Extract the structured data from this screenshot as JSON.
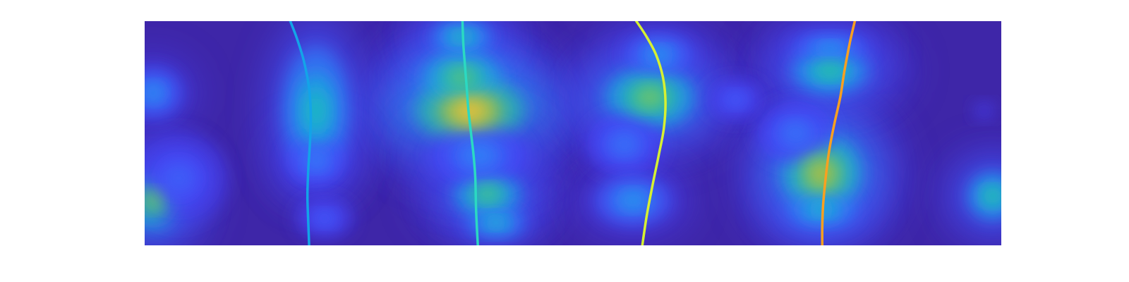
{
  "chart_data": {
    "type": "heatmap",
    "title": "",
    "xlabel": "",
    "ylabel": "",
    "axes_visible": false,
    "ticks_visible": false,
    "colorbar": false,
    "grid": false,
    "legend": "none",
    "colormap": [
      "#3e26a8",
      "#4743f8",
      "#2e87f7",
      "#16b5d3",
      "#2ec09b",
      "#83c458",
      "#d2ba2d",
      "#fec237",
      "#f9fb15"
    ],
    "xlim": [
      0,
      1
    ],
    "ylim": [
      0,
      1
    ],
    "density_blobs": [
      {
        "x": 0.01,
        "y": 0.2,
        "sx": 0.028,
        "sy": 0.11,
        "w": 0.62
      },
      {
        "x": 0.01,
        "y": 0.68,
        "sx": 0.03,
        "sy": 0.1,
        "w": 0.28
      },
      {
        "x": 0.04,
        "y": 0.3,
        "sx": 0.05,
        "sy": 0.18,
        "w": 0.18
      },
      {
        "x": 0.2,
        "y": 0.6,
        "sx": 0.035,
        "sy": 0.25,
        "w": 0.42
      },
      {
        "x": 0.2,
        "y": 0.38,
        "sx": 0.03,
        "sy": 0.1,
        "w": 0.24
      },
      {
        "x": 0.21,
        "y": 0.12,
        "sx": 0.03,
        "sy": 0.08,
        "w": 0.18
      },
      {
        "x": 0.38,
        "y": 0.6,
        "sx": 0.055,
        "sy": 0.13,
        "w": 0.85
      },
      {
        "x": 0.37,
        "y": 0.75,
        "sx": 0.04,
        "sy": 0.1,
        "w": 0.58
      },
      {
        "x": 0.37,
        "y": 0.93,
        "sx": 0.03,
        "sy": 0.06,
        "w": 0.45
      },
      {
        "x": 0.4,
        "y": 0.23,
        "sx": 0.035,
        "sy": 0.09,
        "w": 0.55
      },
      {
        "x": 0.41,
        "y": 0.1,
        "sx": 0.03,
        "sy": 0.06,
        "w": 0.4
      },
      {
        "x": 0.39,
        "y": 0.4,
        "sx": 0.05,
        "sy": 0.12,
        "w": 0.25
      },
      {
        "x": 0.59,
        "y": 0.66,
        "sx": 0.045,
        "sy": 0.12,
        "w": 0.62
      },
      {
        "x": 0.6,
        "y": 0.85,
        "sx": 0.035,
        "sy": 0.08,
        "w": 0.3
      },
      {
        "x": 0.56,
        "y": 0.45,
        "sx": 0.04,
        "sy": 0.12,
        "w": 0.22
      },
      {
        "x": 0.57,
        "y": 0.2,
        "sx": 0.04,
        "sy": 0.1,
        "w": 0.3
      },
      {
        "x": 0.69,
        "y": 0.65,
        "sx": 0.03,
        "sy": 0.08,
        "w": 0.18
      },
      {
        "x": 0.79,
        "y": 0.32,
        "sx": 0.04,
        "sy": 0.15,
        "w": 0.72
      },
      {
        "x": 0.79,
        "y": 0.16,
        "sx": 0.035,
        "sy": 0.07,
        "w": 0.4
      },
      {
        "x": 0.8,
        "y": 0.78,
        "sx": 0.04,
        "sy": 0.09,
        "w": 0.5
      },
      {
        "x": 0.8,
        "y": 0.88,
        "sx": 0.04,
        "sy": 0.06,
        "w": 0.3
      },
      {
        "x": 0.76,
        "y": 0.5,
        "sx": 0.04,
        "sy": 0.12,
        "w": 0.22
      },
      {
        "x": 0.99,
        "y": 0.22,
        "sx": 0.025,
        "sy": 0.09,
        "w": 0.5
      },
      {
        "x": 0.98,
        "y": 0.6,
        "sx": 0.035,
        "sy": 0.1,
        "w": 0.1
      }
    ],
    "series": [
      {
        "color": "#13a4e8",
        "x": [
          0.17,
          0.178,
          0.186,
          0.192,
          0.194,
          0.193,
          0.191,
          0.19,
          0.191,
          0.192
        ],
        "y": [
          1.0,
          0.92,
          0.82,
          0.7,
          0.58,
          0.46,
          0.34,
          0.22,
          0.1,
          0.0
        ]
      },
      {
        "color": "#2bd9c2",
        "x": [
          0.371,
          0.372,
          0.374,
          0.376,
          0.378,
          0.381,
          0.384,
          0.386,
          0.387,
          0.389
        ],
        "y": [
          1.0,
          0.9,
          0.8,
          0.7,
          0.6,
          0.5,
          0.4,
          0.3,
          0.15,
          0.0
        ]
      },
      {
        "color": "#d6f032",
        "x": [
          0.574,
          0.586,
          0.597,
          0.605,
          0.608,
          0.606,
          0.6,
          0.593,
          0.586,
          0.581
        ],
        "y": [
          1.0,
          0.93,
          0.85,
          0.75,
          0.64,
          0.52,
          0.4,
          0.27,
          0.13,
          0.0
        ]
      },
      {
        "color": "#f9a020",
        "x": [
          0.829,
          0.823,
          0.817,
          0.812,
          0.805,
          0.799,
          0.795,
          0.792,
          0.791,
          0.791
        ],
        "y": [
          1.0,
          0.9,
          0.78,
          0.66,
          0.54,
          0.42,
          0.3,
          0.18,
          0.08,
          0.0
        ]
      }
    ]
  }
}
